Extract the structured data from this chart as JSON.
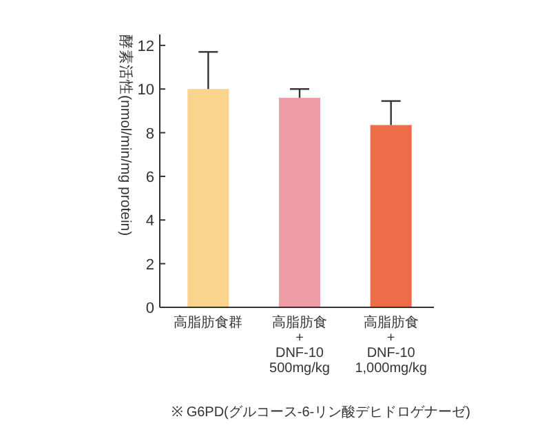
{
  "chart_data": {
    "type": "bar",
    "ylabel": "酵素活性(nmol/min/mg protein)",
    "categories": [
      "高脂肪食群",
      "高脂肪食\n+\nDNF-10\n500mg/kg",
      "高脂肪食\n+\nDNF-10\n1,000mg/kg"
    ],
    "values": [
      10.0,
      9.6,
      8.35
    ],
    "errors": [
      [
        10.0,
        11.7
      ],
      [
        9.6,
        10.0
      ],
      [
        8.35,
        9.45
      ]
    ],
    "colors": [
      "#fad38c",
      "#f09ca7",
      "#ec6d48"
    ],
    "ylim": [
      0,
      12.5
    ],
    "yticks": [
      0,
      2,
      4,
      6,
      8,
      10,
      12
    ],
    "annotations": [
      "※ G6PD(グルコース-6-リン酸デヒドロゲナーゼ)"
    ]
  }
}
